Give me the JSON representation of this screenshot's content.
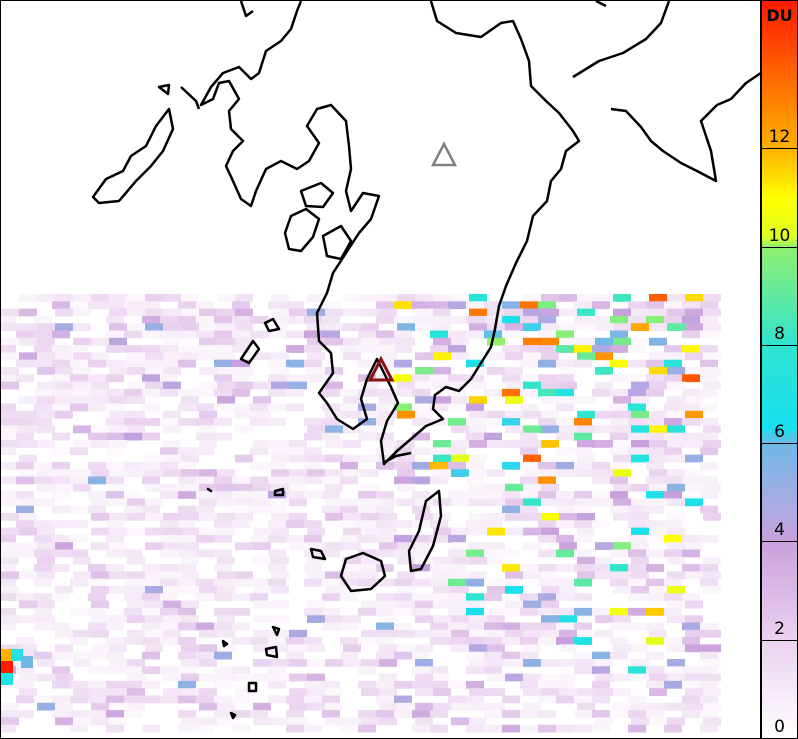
{
  "colorbar": {
    "unit_label": "DU",
    "ticks": [
      "0",
      "2",
      "4",
      "6",
      "8",
      "10",
      "12"
    ],
    "range": [
      0,
      15
    ],
    "stops": [
      {
        "v": 0,
        "color": "#ffffff"
      },
      {
        "v": 2,
        "color": "#ead2ef"
      },
      {
        "v": 4,
        "color": "#c9a0dc"
      },
      {
        "v": 4.5,
        "color": "#b4a8e2"
      },
      {
        "v": 6,
        "color": "#70b8e6"
      },
      {
        "v": 6.3,
        "color": "#18e0f0"
      },
      {
        "v": 8,
        "color": "#30e4d0"
      },
      {
        "v": 10,
        "color": "#90f070"
      },
      {
        "v": 10.2,
        "color": "#e0ff20"
      },
      {
        "v": 11,
        "color": "#ffff00"
      },
      {
        "v": 12,
        "color": "#ffb000"
      },
      {
        "v": 15,
        "color": "#ff1a00"
      }
    ]
  },
  "markers": [
    {
      "name": "volcano-marker-gray",
      "color": "#808080"
    },
    {
      "name": "volcano-marker-active",
      "color": "#8b1010"
    }
  ],
  "coastline_color": "#000000"
}
